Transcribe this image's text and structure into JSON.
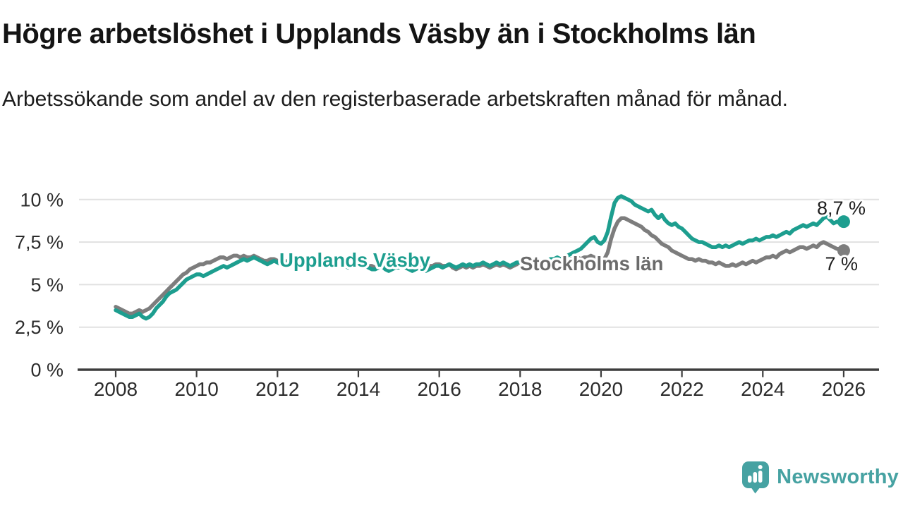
{
  "header": {
    "title": "Högre arbetslöshet i Upplands Väsby än i Stockholms län",
    "subtitle": "Arbetssökande som andel av den registerbaserade arbetskraften månad för månad."
  },
  "chart_data": {
    "type": "line",
    "title": "Högre arbetslöshet i Upplands Väsby än i Stockholms län",
    "subtitle": "Arbetssökande som andel av den registerbaserade arbetskraften månad för månad.",
    "x_unit": "year",
    "x_start": 2008,
    "x_step_months": 1,
    "x_end": 2026,
    "ylim": [
      0,
      10.4
    ],
    "grid": "horizontal",
    "legend_position": "inline-labels",
    "yticks": [
      {
        "value": 0,
        "label": "0 %"
      },
      {
        "value": 2.5,
        "label": "2,5 %"
      },
      {
        "value": 5,
        "label": "5 %"
      },
      {
        "value": 7.5,
        "label": "7,5 %"
      },
      {
        "value": 10,
        "label": "10 %"
      }
    ],
    "xticks": [
      {
        "value": 2008,
        "label": "2008"
      },
      {
        "value": 2010,
        "label": "2010"
      },
      {
        "value": 2012,
        "label": "2012"
      },
      {
        "value": 2014,
        "label": "2014"
      },
      {
        "value": 2016,
        "label": "2016"
      },
      {
        "value": 2018,
        "label": "2018"
      },
      {
        "value": 2020,
        "label": "2020"
      },
      {
        "value": 2022,
        "label": "2022"
      },
      {
        "value": 2024,
        "label": "2024"
      },
      {
        "value": 2026,
        "label": "2026"
      }
    ],
    "series": [
      {
        "id": "upplands-vasby",
        "name": "Upplands Väsby",
        "color": "#1d9e8f",
        "end_label": "8,7 %",
        "end_value": 8.7,
        "values": [
          3.5,
          3.4,
          3.3,
          3.2,
          3.1,
          3.1,
          3.2,
          3.3,
          3.1,
          3.0,
          3.1,
          3.3,
          3.6,
          3.8,
          4.0,
          4.3,
          4.5,
          4.6,
          4.7,
          4.9,
          5.1,
          5.3,
          5.4,
          5.5,
          5.6,
          5.6,
          5.5,
          5.6,
          5.7,
          5.8,
          5.9,
          6.0,
          6.1,
          6.0,
          6.1,
          6.2,
          6.3,
          6.4,
          6.5,
          6.4,
          6.5,
          6.6,
          6.5,
          6.4,
          6.3,
          6.2,
          6.3,
          6.4,
          6.3,
          6.2,
          6.2,
          6.3,
          6.2,
          6.1,
          6.3,
          6.4,
          6.2,
          6.1,
          6.2,
          6.3,
          6.3,
          6.4,
          6.3,
          6.2,
          6.1,
          6.2,
          6.3,
          6.2,
          6.1,
          6.0,
          6.1,
          6.2,
          6.1,
          6.2,
          6.1,
          6.0,
          5.9,
          5.9,
          6.0,
          6.1,
          5.9,
          5.8,
          5.9,
          6.0,
          6.0,
          6.1,
          6.0,
          5.9,
          5.8,
          5.9,
          6.0,
          5.9,
          5.8,
          5.9,
          6.0,
          6.1,
          6.1,
          6.0,
          6.1,
          6.2,
          6.1,
          6.0,
          6.1,
          6.2,
          6.1,
          6.2,
          6.1,
          6.2,
          6.2,
          6.3,
          6.2,
          6.1,
          6.2,
          6.3,
          6.2,
          6.3,
          6.2,
          6.1,
          6.2,
          6.3,
          6.3,
          6.2,
          6.3,
          6.4,
          6.3,
          6.2,
          6.3,
          6.4,
          6.4,
          6.5,
          6.5,
          6.6,
          6.5,
          6.6,
          6.7,
          6.8,
          6.9,
          7.0,
          7.1,
          7.3,
          7.5,
          7.7,
          7.8,
          7.5,
          7.4,
          7.6,
          8.1,
          9.0,
          9.8,
          10.1,
          10.2,
          10.1,
          10.0,
          9.9,
          9.7,
          9.6,
          9.5,
          9.4,
          9.3,
          9.4,
          9.1,
          8.9,
          9.1,
          8.8,
          8.6,
          8.5,
          8.6,
          8.4,
          8.3,
          8.1,
          7.9,
          7.7,
          7.6,
          7.5,
          7.5,
          7.4,
          7.3,
          7.2,
          7.2,
          7.3,
          7.2,
          7.3,
          7.2,
          7.3,
          7.4,
          7.5,
          7.4,
          7.5,
          7.6,
          7.6,
          7.7,
          7.6,
          7.7,
          7.8,
          7.8,
          7.9,
          7.8,
          7.9,
          8.0,
          8.1,
          8.0,
          8.2,
          8.3,
          8.4,
          8.5,
          8.4,
          8.5,
          8.6,
          8.5,
          8.7,
          8.9,
          9.0,
          8.8,
          8.6,
          8.7,
          8.6,
          8.7
        ]
      },
      {
        "id": "stockholms-lan",
        "name": "Stockholms län",
        "color": "#7d7d7d",
        "end_label": "7 %",
        "end_value": 7.0,
        "values": [
          3.7,
          3.6,
          3.5,
          3.4,
          3.3,
          3.3,
          3.4,
          3.5,
          3.4,
          3.5,
          3.6,
          3.8,
          4.0,
          4.2,
          4.4,
          4.6,
          4.8,
          5.0,
          5.2,
          5.4,
          5.6,
          5.7,
          5.9,
          6.0,
          6.1,
          6.2,
          6.2,
          6.3,
          6.3,
          6.4,
          6.5,
          6.6,
          6.6,
          6.5,
          6.6,
          6.7,
          6.7,
          6.6,
          6.7,
          6.6,
          6.6,
          6.7,
          6.6,
          6.5,
          6.4,
          6.4,
          6.5,
          6.5,
          6.4,
          6.4,
          6.3,
          6.4,
          6.3,
          6.3,
          6.4,
          6.5,
          6.3,
          6.2,
          6.3,
          6.4,
          6.4,
          6.5,
          6.4,
          6.3,
          6.2,
          6.3,
          6.4,
          6.3,
          6.2,
          6.1,
          6.2,
          6.3,
          6.2,
          6.3,
          6.2,
          6.1,
          6.1,
          6.0,
          6.1,
          6.2,
          6.1,
          6.0,
          6.1,
          6.1,
          6.1,
          6.2,
          6.1,
          6.0,
          6.0,
          6.1,
          6.1,
          6.0,
          6.0,
          6.1,
          6.1,
          6.2,
          6.2,
          6.1,
          6.1,
          6.2,
          6.0,
          5.9,
          6.0,
          6.1,
          6.0,
          6.1,
          6.0,
          6.1,
          6.1,
          6.2,
          6.1,
          6.0,
          6.1,
          6.2,
          6.1,
          6.2,
          6.1,
          6.0,
          6.1,
          6.2,
          6.2,
          6.1,
          6.2,
          6.3,
          6.2,
          6.1,
          6.2,
          6.3,
          6.2,
          6.3,
          6.3,
          6.4,
          6.3,
          6.4,
          6.4,
          6.5,
          6.5,
          6.6,
          6.5,
          6.6,
          6.6,
          6.7,
          6.6,
          6.5,
          6.4,
          6.5,
          6.9,
          7.7,
          8.3,
          8.7,
          8.9,
          8.9,
          8.8,
          8.7,
          8.6,
          8.5,
          8.4,
          8.2,
          8.1,
          7.9,
          7.8,
          7.6,
          7.4,
          7.3,
          7.2,
          7.0,
          6.9,
          6.8,
          6.7,
          6.6,
          6.5,
          6.5,
          6.4,
          6.5,
          6.4,
          6.4,
          6.3,
          6.3,
          6.2,
          6.3,
          6.2,
          6.1,
          6.1,
          6.2,
          6.1,
          6.2,
          6.3,
          6.2,
          6.3,
          6.4,
          6.3,
          6.4,
          6.5,
          6.6,
          6.6,
          6.7,
          6.6,
          6.8,
          6.9,
          7.0,
          6.9,
          7.0,
          7.1,
          7.2,
          7.2,
          7.1,
          7.2,
          7.3,
          7.2,
          7.4,
          7.5,
          7.4,
          7.3,
          7.2,
          7.1,
          7.1,
          7.0
        ]
      }
    ]
  },
  "branding": {
    "logo_text": "Newsworthy",
    "logo_color": "#46a2a2"
  },
  "colors": {
    "teal_line": "#1d9e8f",
    "gray_line": "#7d7d7d",
    "gridline": "#e1e1e1",
    "axis": "#3d3d3d",
    "text": "#141414"
  }
}
